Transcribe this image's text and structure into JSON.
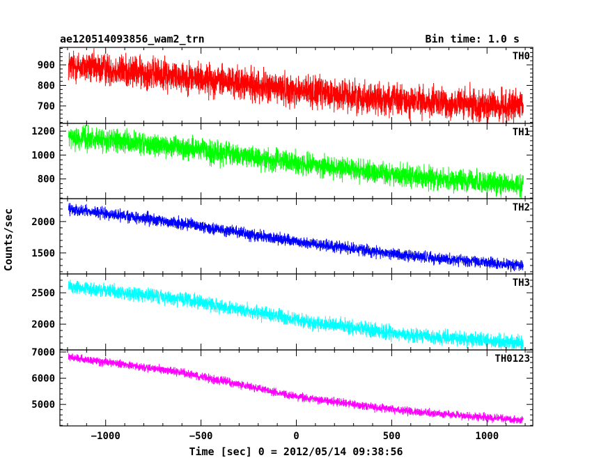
{
  "header": {
    "left_title": "ae120514093856_wam2_trn",
    "right_title": "Bin time: 1.0 s"
  },
  "chart_data": {
    "type": "line",
    "xlabel": "Time [sec] 0 = 2012/05/14 09:38:56",
    "ylabel": "Counts/sec",
    "xlim": [
      -1240,
      1240
    ],
    "x_ticks": [
      -1000,
      -500,
      0,
      500,
      1000
    ],
    "x_tick_labels": [
      "−1000",
      "−500",
      "0",
      "500",
      "1000"
    ],
    "x_range": [
      -1195,
      1190
    ],
    "bin_time_s": 1.0,
    "panels": [
      {
        "name": "TH0",
        "color": "#ff0000",
        "ylim": [
          615,
          985
        ],
        "y_ticks": [
          700,
          800,
          900
        ],
        "y_tick_labels": [
          "700",
          "800",
          "900"
        ],
        "trend": [
          [
            -1195,
            895
          ],
          [
            -600,
            845
          ],
          [
            0,
            775
          ],
          [
            600,
            720
          ],
          [
            1190,
            695
          ]
        ],
        "noise": 38
      },
      {
        "name": "TH1",
        "color": "#00ff00",
        "ylim": [
          635,
          1265
        ],
        "y_ticks": [
          800,
          1000,
          1200
        ],
        "y_tick_labels": [
          "800",
          "1000",
          "1200"
        ],
        "trend": [
          [
            -1195,
            1150
          ],
          [
            -600,
            1060
          ],
          [
            0,
            935
          ],
          [
            600,
            820
          ],
          [
            1190,
            745
          ]
        ],
        "noise": 45
      },
      {
        "name": "TH2",
        "color": "#0000ff",
        "ylim": [
          1165,
          2365
        ],
        "y_ticks": [
          1500,
          2000
        ],
        "y_tick_labels": [
          "1500",
          "2000"
        ],
        "trend": [
          [
            -1195,
            2200
          ],
          [
            -600,
            1970
          ],
          [
            0,
            1680
          ],
          [
            600,
            1450
          ],
          [
            1190,
            1300
          ]
        ],
        "noise": 45
      },
      {
        "name": "TH3",
        "color": "#00ffff",
        "ylim": [
          1590,
          2800
        ],
        "y_ticks": [
          2000,
          2500
        ],
        "y_tick_labels": [
          "2000",
          "2500"
        ],
        "trend": [
          [
            -1195,
            2600
          ],
          [
            -600,
            2400
          ],
          [
            0,
            2070
          ],
          [
            600,
            1820
          ],
          [
            1190,
            1700
          ]
        ],
        "noise": 55
      },
      {
        "name": "TH0123",
        "color": "#ff00ff",
        "ylim": [
          4180,
          7080
        ],
        "y_ticks": [
          5000,
          6000,
          7000
        ],
        "y_tick_labels": [
          "5000",
          "6000",
          "7000"
        ],
        "trend": [
          [
            -1195,
            6800
          ],
          [
            -600,
            6220
          ],
          [
            0,
            5300
          ],
          [
            600,
            4720
          ],
          [
            1190,
            4400
          ]
        ],
        "noise": 75
      }
    ]
  }
}
